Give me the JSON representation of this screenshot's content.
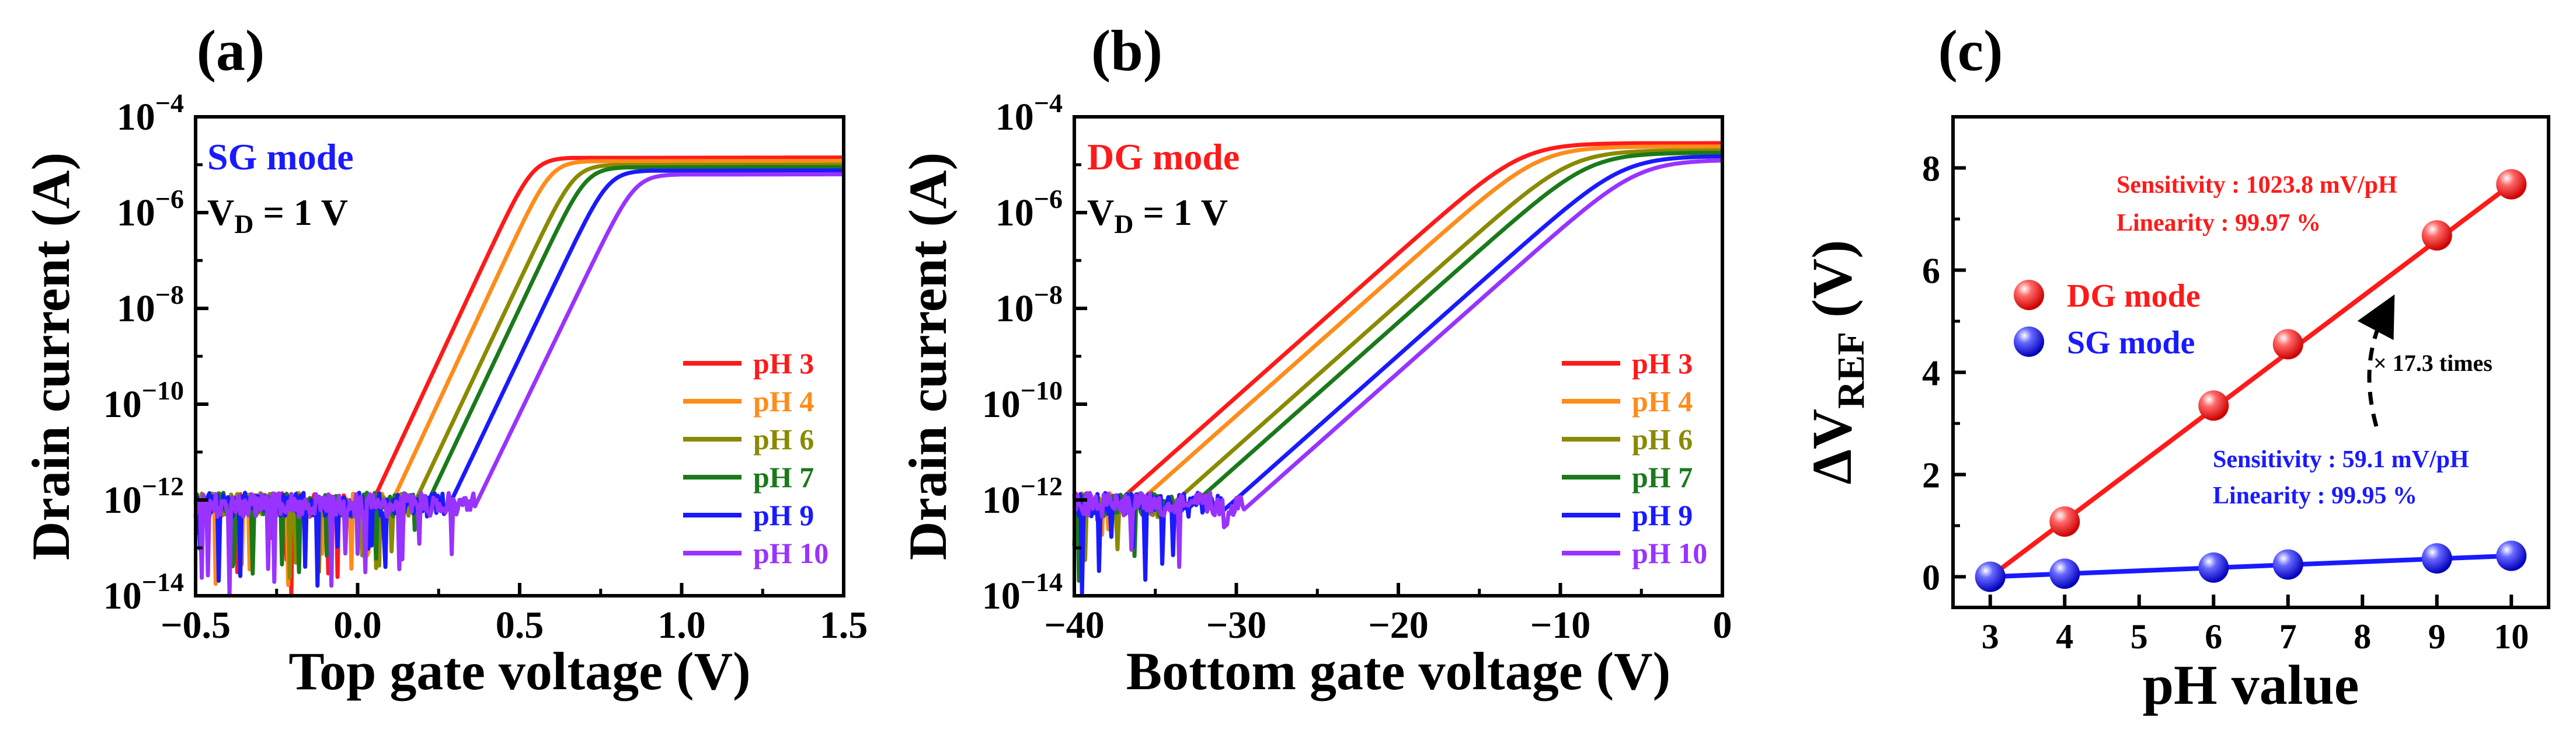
{
  "figure_labels": {
    "a": "(a)",
    "b": "(b)",
    "c": "(c)"
  },
  "colors": {
    "pH3": "#ff1a1a",
    "pH4": "#ff8c1a",
    "pH6": "#8a8a00",
    "pH7": "#1a7a1a",
    "pH9": "#1a1aff",
    "pH10": "#9933ff",
    "dg": "#ff1a1a",
    "sg": "#1a1aff",
    "axis": "#000000"
  },
  "chart_data": [
    {
      "type": "line",
      "panel": "a",
      "title": "",
      "mode_label": "SG mode",
      "vd_prefix": "V",
      "vd_sub": "D",
      "vd_suffix": " = 1 V",
      "xlabel": "Top gate voltage (V)",
      "ylabel": "Drain current (A)",
      "xlim": [
        -0.5,
        1.5
      ],
      "ylim_log10": [
        -14,
        -4
      ],
      "xticks": [
        -0.5,
        0.0,
        0.5,
        1.0,
        1.5
      ],
      "xtick_labels": [
        "−0.5",
        "0.0",
        "0.5",
        "1.0",
        "1.5"
      ],
      "ytick_exponents": [
        -14,
        -12,
        -10,
        -8,
        -6,
        -4
      ],
      "ytick_base": "10",
      "legend_position": "lower-right",
      "series": [
        {
          "name": "pH 3",
          "color_key": "pH3",
          "vth": -0.02,
          "slope": 14.5,
          "sat_log": -4.85
        },
        {
          "name": "pH 4",
          "color_key": "pH4",
          "vth": 0.04,
          "slope": 14.5,
          "sat_log": -4.92
        },
        {
          "name": "pH 6",
          "color_key": "pH6",
          "vth": 0.11,
          "slope": 14.3,
          "sat_log": -5.0
        },
        {
          "name": "pH 7",
          "color_key": "pH7",
          "vth": 0.15,
          "slope": 14.3,
          "sat_log": -5.05
        },
        {
          "name": "pH 9",
          "color_key": "pH9",
          "vth": 0.22,
          "slope": 14.2,
          "sat_log": -5.12
        },
        {
          "name": "pH 10",
          "color_key": "pH10",
          "vth": 0.3,
          "slope": 14.0,
          "sat_log": -5.2
        }
      ]
    },
    {
      "type": "line",
      "panel": "b",
      "title": "",
      "mode_label": "DG mode",
      "vd_prefix": "V",
      "vd_sub": "D",
      "vd_suffix": " = 1 V",
      "xlabel": "Bottom gate voltage (V)",
      "ylabel": "Drain current (A)",
      "xlim": [
        -40,
        0
      ],
      "ylim_log10": [
        -14,
        -4
      ],
      "xticks": [
        -40,
        -30,
        -20,
        -10,
        0
      ],
      "xtick_labels": [
        "−40",
        "−30",
        "−20",
        "−10",
        "0"
      ],
      "ytick_exponents": [
        -14,
        -12,
        -10,
        -8,
        -6,
        -4
      ],
      "ytick_base": "10",
      "legend_position": "lower-right",
      "series": [
        {
          "name": "pH 3",
          "color_key": "pH3",
          "vth": -40.5,
          "slope": 0.3,
          "sat_log": -4.55
        },
        {
          "name": "pH 4",
          "color_key": "pH4",
          "vth": -39.2,
          "slope": 0.3,
          "sat_log": -4.62
        },
        {
          "name": "pH 6",
          "color_key": "pH6",
          "vth": -37.0,
          "slope": 0.3,
          "sat_log": -4.7
        },
        {
          "name": "pH 7",
          "color_key": "pH7",
          "vth": -35.7,
          "slope": 0.3,
          "sat_log": -4.75
        },
        {
          "name": "pH 9",
          "color_key": "pH9",
          "vth": -33.4,
          "slope": 0.3,
          "sat_log": -4.82
        },
        {
          "name": "pH 10",
          "color_key": "pH10",
          "vth": -32.2,
          "slope": 0.3,
          "sat_log": -4.9
        }
      ]
    },
    {
      "type": "scatter",
      "panel": "c",
      "title": "",
      "xlabel": "pH value",
      "ylabel_main": "ΔV",
      "ylabel_sub": "REF",
      "ylabel_suffix": " (V)",
      "xlim": [
        2.5,
        10.5
      ],
      "ylim": [
        -0.6,
        9
      ],
      "xticks": [
        3,
        4,
        5,
        6,
        7,
        8,
        9,
        10
      ],
      "yticks": [
        0,
        2,
        4,
        6,
        8
      ],
      "legend_position": "center-left",
      "annotation_times": "× 17.3 times",
      "series": [
        {
          "name": "DG mode",
          "color_key": "dg",
          "x": [
            3,
            4,
            6,
            7,
            9,
            10
          ],
          "y": [
            0.0,
            1.08,
            3.35,
            4.55,
            6.68,
            7.68
          ],
          "fit": {
            "slope": 1.0238,
            "intercept": -3.07
          },
          "sensitivity": "Sensitivity : 1023.8 mV/pH",
          "linearity": "Linearity : 99.97 %"
        },
        {
          "name": "SG mode",
          "color_key": "sg",
          "x": [
            3,
            4,
            6,
            7,
            9,
            10
          ],
          "y": [
            0.0,
            0.06,
            0.18,
            0.24,
            0.36,
            0.41
          ],
          "fit": {
            "slope": 0.0591,
            "intercept": -0.177
          },
          "sensitivity": "Sensitivity : 59.1 mV/pH",
          "linearity": "Linearity : 99.95 %"
        }
      ]
    }
  ]
}
